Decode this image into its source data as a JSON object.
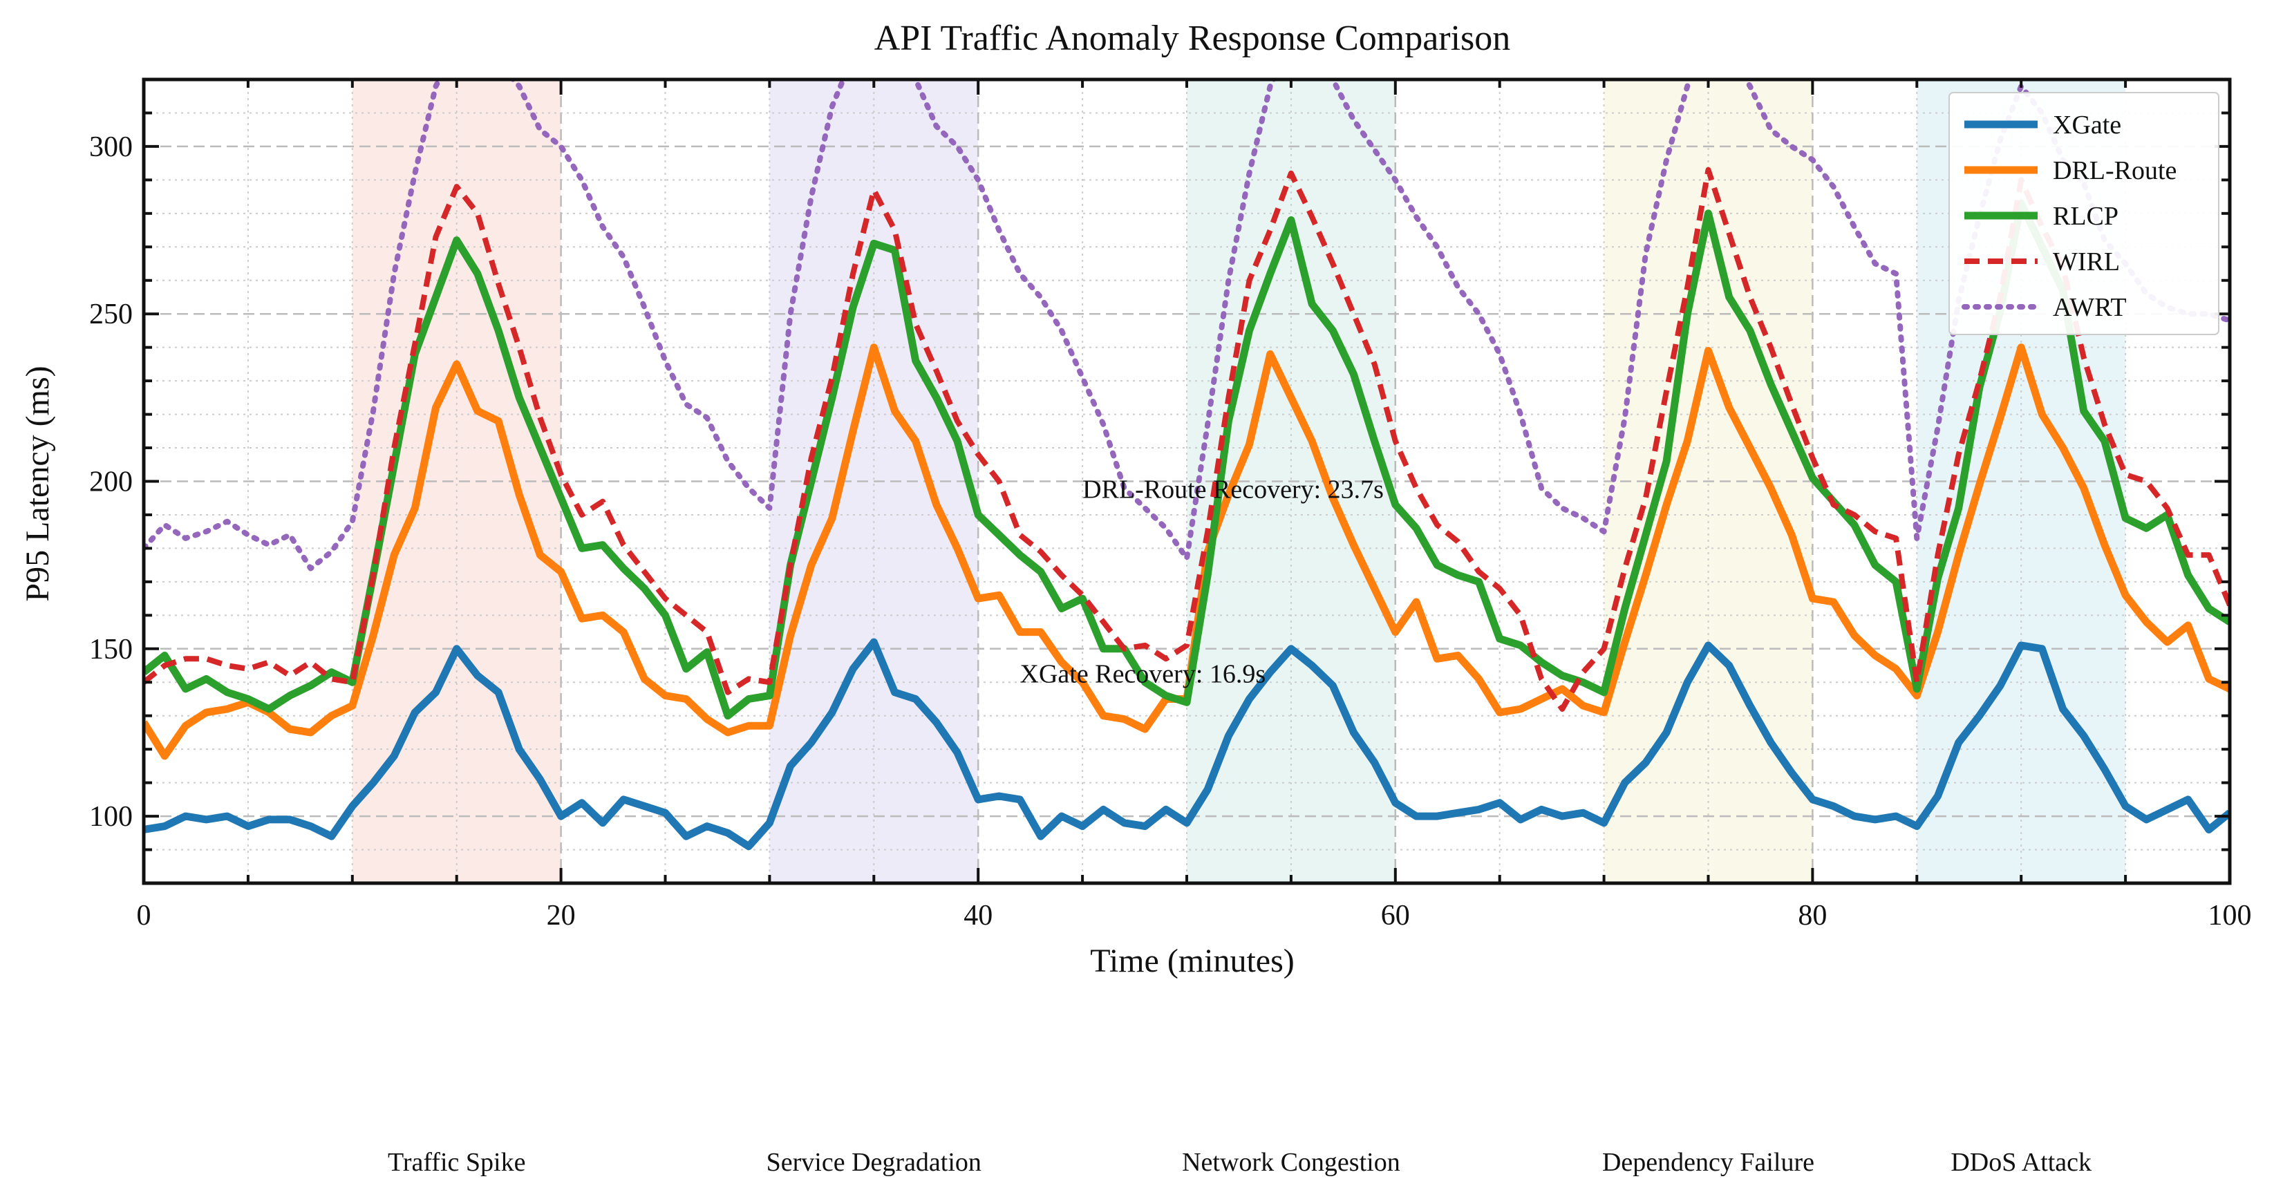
{
  "chart_data": {
    "type": "line",
    "title": "API Traffic Anomaly Response Comparison",
    "xlabel": "Time (minutes)",
    "ylabel": "P95 Latency (ms)",
    "xlim": [
      0,
      100
    ],
    "ylim": [
      80,
      320
    ],
    "xticks": [
      0,
      20,
      40,
      60,
      80,
      100
    ],
    "yticks": [
      100,
      150,
      200,
      250,
      300
    ],
    "grid": true,
    "legend_position": "top-right",
    "colors": {
      "XGate": "#1f77b4",
      "DRL-Route": "#ff7f0e",
      "RLCP": "#2ca02c",
      "WIRL": "#d62728",
      "AWRT": "#9467bd"
    },
    "x": [
      0,
      1,
      2,
      3,
      4,
      5,
      6,
      7,
      8,
      9,
      10,
      11,
      12,
      13,
      14,
      15,
      16,
      17,
      18,
      19,
      20,
      21,
      22,
      23,
      24,
      25,
      26,
      27,
      28,
      29,
      30,
      31,
      32,
      33,
      34,
      35,
      36,
      37,
      38,
      39,
      40,
      41,
      42,
      43,
      44,
      45,
      46,
      47,
      48,
      49,
      50,
      51,
      52,
      53,
      54,
      55,
      56,
      57,
      58,
      59,
      60,
      61,
      62,
      63,
      64,
      65,
      66,
      67,
      68,
      69,
      70,
      71,
      72,
      73,
      74,
      75,
      76,
      77,
      78,
      79,
      80,
      81,
      82,
      83,
      84,
      85,
      86,
      87,
      88,
      89,
      90,
      91,
      92,
      93,
      94,
      95,
      96,
      97,
      98,
      99,
      100
    ],
    "series": [
      {
        "name": "XGate",
        "style": "solid",
        "values": [
          96,
          97,
          100,
          99,
          100,
          97,
          99,
          99,
          97,
          94,
          103,
          110,
          118,
          131,
          137,
          150,
          142,
          137,
          120,
          111,
          100,
          104,
          98,
          105,
          103,
          101,
          94,
          97,
          95,
          91,
          98,
          115,
          122,
          131,
          144,
          152,
          137,
          135,
          128,
          119,
          105,
          106,
          105,
          94,
          100,
          97,
          102,
          98,
          97,
          102,
          98,
          108,
          124,
          135,
          143,
          150,
          145,
          139,
          125,
          116,
          104,
          100,
          100,
          101,
          102,
          104,
          99,
          102,
          100,
          101,
          98,
          110,
          116,
          125,
          140,
          151,
          145,
          133,
          122,
          113,
          105,
          103,
          100,
          99,
          100,
          97,
          106,
          122,
          130,
          139,
          151,
          150,
          132,
          124,
          114,
          103,
          99,
          102,
          105,
          96,
          101
        ]
      },
      {
        "name": "DRL-Route",
        "style": "solid",
        "values": [
          128,
          118,
          127,
          131,
          132,
          134,
          131,
          126,
          125,
          130,
          133,
          154,
          178,
          192,
          222,
          235,
          221,
          218,
          196,
          178,
          173,
          159,
          160,
          155,
          141,
          136,
          135,
          129,
          125,
          127,
          127,
          154,
          175,
          189,
          215,
          240,
          221,
          212,
          193,
          180,
          165,
          166,
          155,
          155,
          146,
          140,
          130,
          129,
          126,
          135,
          135,
          179,
          196,
          211,
          238,
          225,
          212,
          195,
          181,
          168,
          155,
          164,
          147,
          148,
          141,
          131,
          132,
          135,
          138,
          133,
          131,
          152,
          172,
          193,
          212,
          239,
          222,
          210,
          198,
          184,
          165,
          164,
          154,
          148,
          144,
          136,
          155,
          178,
          199,
          219,
          240,
          220,
          210,
          198,
          181,
          166,
          158,
          152,
          157,
          141,
          138
        ]
      },
      {
        "name": "RLCP",
        "style": "solid",
        "values": [
          143,
          148,
          138,
          141,
          137,
          135,
          132,
          136,
          139,
          143,
          140,
          172,
          205,
          238,
          255,
          272,
          262,
          245,
          225,
          210,
          195,
          180,
          181,
          174,
          168,
          160,
          144,
          149,
          130,
          135,
          136,
          175,
          200,
          225,
          252,
          271,
          269,
          236,
          225,
          212,
          190,
          184,
          178,
          173,
          162,
          165,
          150,
          150,
          140,
          136,
          134,
          172,
          218,
          245,
          262,
          278,
          253,
          245,
          232,
          212,
          193,
          186,
          175,
          172,
          170,
          153,
          151,
          146,
          142,
          140,
          137,
          162,
          184,
          206,
          250,
          280,
          255,
          245,
          229,
          215,
          201,
          194,
          187,
          175,
          170,
          138,
          171,
          192,
          228,
          251,
          283,
          270,
          257,
          221,
          212,
          189,
          186,
          190,
          172,
          162,
          158
        ]
      },
      {
        "name": "WIRL",
        "style": "dashed",
        "values": [
          140,
          145,
          147,
          147,
          145,
          144,
          146,
          142,
          146,
          141,
          140,
          172,
          210,
          241,
          273,
          288,
          280,
          259,
          240,
          219,
          202,
          190,
          194,
          181,
          173,
          165,
          160,
          155,
          137,
          141,
          140,
          175,
          207,
          231,
          262,
          287,
          275,
          247,
          233,
          218,
          208,
          200,
          184,
          179,
          172,
          166,
          158,
          150,
          151,
          147,
          151,
          185,
          225,
          260,
          275,
          292,
          279,
          265,
          250,
          235,
          212,
          198,
          187,
          182,
          173,
          168,
          160,
          141,
          132,
          143,
          150,
          174,
          195,
          227,
          258,
          293,
          274,
          255,
          240,
          223,
          207,
          193,
          190,
          185,
          183,
          140,
          178,
          208,
          230,
          255,
          290,
          276,
          264,
          237,
          217,
          202,
          200,
          192,
          178,
          178,
          163
        ]
      },
      {
        "name": "AWRT",
        "style": "dotted",
        "values": [
          180,
          187,
          183,
          185,
          188,
          184,
          181,
          184,
          174,
          179,
          188,
          221,
          262,
          292,
          318,
          330,
          333,
          325,
          318,
          305,
          300,
          290,
          276,
          267,
          252,
          236,
          223,
          219,
          206,
          198,
          192,
          250,
          285,
          312,
          327,
          340,
          332,
          320,
          306,
          300,
          290,
          275,
          262,
          255,
          245,
          231,
          217,
          198,
          192,
          186,
          177,
          217,
          260,
          292,
          318,
          330,
          328,
          320,
          308,
          299,
          290,
          279,
          270,
          258,
          250,
          238,
          220,
          198,
          192,
          189,
          185,
          219,
          268,
          296,
          318,
          335,
          328,
          318,
          305,
          300,
          296,
          288,
          276,
          265,
          262,
          183,
          216,
          254,
          279,
          302,
          318,
          310,
          296,
          289,
          272,
          265,
          256,
          252,
          250,
          250,
          248
        ]
      }
    ],
    "event_regions": [
      {
        "label": "Traffic Spike",
        "start": 10,
        "end": 20,
        "color": "#fbe3df"
      },
      {
        "label": "Service Degradation",
        "start": 30,
        "end": 40,
        "color": "#e7e4f5"
      },
      {
        "label": "Network Congestion",
        "start": 50,
        "end": 60,
        "color": "#e2f2ef"
      },
      {
        "label": "Dependency Failure",
        "start": 70,
        "end": 80,
        "color": "#f8f6e2"
      },
      {
        "label": "DDoS Attack",
        "start": 85,
        "end": 95,
        "color": "#e0f1f6"
      }
    ],
    "annotations": [
      {
        "text": "DRL-Route Recovery: 23.7s",
        "x": 45,
        "y": 195
      },
      {
        "text": "XGate Recovery: 16.9s",
        "x": 42,
        "y": 140
      }
    ]
  }
}
